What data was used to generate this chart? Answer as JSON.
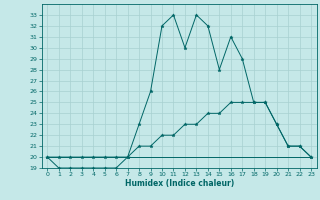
{
  "xlabel": "Humidex (Indice chaleur)",
  "bg_color": "#c5e8e8",
  "grid_color": "#a8d0d0",
  "line_color": "#006666",
  "series1": [
    [
      0,
      20
    ],
    [
      1,
      19
    ],
    [
      2,
      19
    ],
    [
      3,
      19
    ],
    [
      4,
      19
    ],
    [
      5,
      19
    ],
    [
      6,
      19
    ],
    [
      7,
      20
    ],
    [
      8,
      23
    ],
    [
      9,
      26
    ],
    [
      10,
      32
    ],
    [
      11,
      33
    ],
    [
      12,
      30
    ],
    [
      13,
      33
    ],
    [
      14,
      32
    ],
    [
      15,
      28
    ],
    [
      16,
      31
    ],
    [
      17,
      29
    ],
    [
      18,
      25
    ],
    [
      19,
      25
    ],
    [
      20,
      23
    ],
    [
      21,
      21
    ],
    [
      22,
      21
    ],
    [
      23,
      20
    ]
  ],
  "series2": [
    [
      0,
      20
    ],
    [
      1,
      20
    ],
    [
      2,
      20
    ],
    [
      3,
      20
    ],
    [
      4,
      20
    ],
    [
      5,
      20
    ],
    [
      6,
      20
    ],
    [
      7,
      20
    ],
    [
      8,
      21
    ],
    [
      9,
      21
    ],
    [
      10,
      22
    ],
    [
      11,
      22
    ],
    [
      12,
      23
    ],
    [
      13,
      23
    ],
    [
      14,
      24
    ],
    [
      15,
      24
    ],
    [
      16,
      25
    ],
    [
      17,
      25
    ],
    [
      18,
      25
    ],
    [
      19,
      25
    ],
    [
      20,
      23
    ],
    [
      21,
      21
    ],
    [
      22,
      21
    ],
    [
      23,
      20
    ]
  ],
  "series3": [
    [
      0,
      20
    ],
    [
      1,
      20
    ],
    [
      2,
      20
    ],
    [
      3,
      20
    ],
    [
      4,
      20
    ],
    [
      5,
      20
    ],
    [
      6,
      20
    ],
    [
      7,
      20
    ],
    [
      8,
      20
    ],
    [
      9,
      20
    ],
    [
      10,
      20
    ],
    [
      11,
      20
    ],
    [
      12,
      20
    ],
    [
      13,
      20
    ],
    [
      14,
      20
    ],
    [
      15,
      20
    ],
    [
      16,
      20
    ],
    [
      17,
      20
    ],
    [
      18,
      20
    ],
    [
      19,
      20
    ],
    [
      20,
      20
    ],
    [
      21,
      20
    ],
    [
      22,
      20
    ],
    [
      23,
      20
    ]
  ],
  "xlim": [
    -0.5,
    23.5
  ],
  "ylim": [
    19,
    34
  ],
  "yticks": [
    19,
    20,
    21,
    22,
    23,
    24,
    25,
    26,
    27,
    28,
    29,
    30,
    31,
    32,
    33
  ],
  "xticks": [
    0,
    1,
    2,
    3,
    4,
    5,
    6,
    7,
    8,
    9,
    10,
    11,
    12,
    13,
    14,
    15,
    16,
    17,
    18,
    19,
    20,
    21,
    22,
    23
  ]
}
